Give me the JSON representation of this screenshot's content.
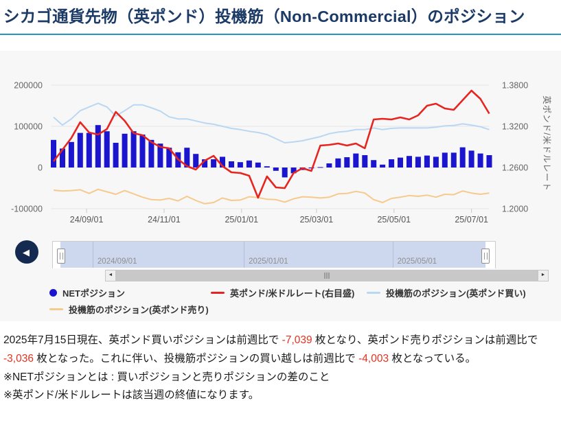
{
  "header": {
    "title": "シカゴ通貨先物（英ポンド）投機筋（Non-Commercial）のポジション"
  },
  "colors": {
    "title": "#1c3a66",
    "accent_rule": "#2296c3",
    "panel_bg": "#f7f7f7",
    "net_bar": "#1b15cd",
    "rate_line": "#e62420",
    "buy_line": "#b9d7f3",
    "sell_line": "#f6c98c",
    "negative_number_text": "#e6301f"
  },
  "controls": {
    "back_glyph": "◀",
    "scroll_left_glyph": "◄",
    "scroll_right_glyph": "►"
  },
  "chart_data": {
    "type": "combo",
    "x_dates": [
      "2024/08/06",
      "2024/08/13",
      "2024/08/20",
      "2024/08/27",
      "2024/09/03",
      "2024/09/10",
      "2024/09/17",
      "2024/09/24",
      "2024/10/01",
      "2024/10/08",
      "2024/10/15",
      "2024/10/22",
      "2024/10/29",
      "2024/11/05",
      "2024/11/12",
      "2024/11/19",
      "2024/11/26",
      "2024/12/03",
      "2024/12/10",
      "2024/12/17",
      "2024/12/24",
      "2024/12/31",
      "2025/01/07",
      "2025/01/14",
      "2025/01/21",
      "2025/01/28",
      "2025/02/04",
      "2025/02/11",
      "2025/02/18",
      "2025/02/25",
      "2025/03/04",
      "2025/03/11",
      "2025/03/18",
      "2025/03/25",
      "2025/04/01",
      "2025/04/08",
      "2025/04/15",
      "2025/04/22",
      "2025/04/29",
      "2025/05/06",
      "2025/05/13",
      "2025/05/20",
      "2025/05/27",
      "2025/06/03",
      "2025/06/10",
      "2025/06/17",
      "2025/06/24",
      "2025/07/01",
      "2025/07/08",
      "2025/07/15"
    ],
    "series": [
      {
        "name": "NETポジション",
        "type": "bar",
        "axis": "left",
        "color": "#1b15cd",
        "values": [
          67000,
          46000,
          62000,
          84000,
          84000,
          103000,
          88000,
          60000,
          82000,
          88000,
          80000,
          67000,
          58000,
          48000,
          37000,
          48000,
          33000,
          20000,
          20000,
          26000,
          15000,
          13000,
          17000,
          12000,
          3000,
          -8000,
          -24000,
          -14000,
          -6000,
          -2000,
          1000,
          10000,
          22000,
          25000,
          34000,
          30000,
          18000,
          7000,
          20000,
          24000,
          28000,
          26000,
          29000,
          26000,
          36000,
          36000,
          49000,
          41000,
          34000,
          30000
        ]
      },
      {
        "name": "英ポンド/米ドルレート(右目盛)",
        "type": "line",
        "axis": "right",
        "color": "#e62420",
        "values": [
          1.269,
          1.286,
          1.303,
          1.326,
          1.311,
          1.308,
          1.316,
          1.341,
          1.328,
          1.31,
          1.307,
          1.297,
          1.29,
          1.288,
          1.272,
          1.262,
          1.257,
          1.27,
          1.277,
          1.262,
          1.253,
          1.252,
          1.248,
          1.216,
          1.247,
          1.231,
          1.23,
          1.252,
          1.259,
          1.255,
          1.292,
          1.293,
          1.295,
          1.292,
          1.295,
          1.288,
          1.33,
          1.331,
          1.33,
          1.333,
          1.33,
          1.336,
          1.35,
          1.353,
          1.346,
          1.344,
          1.358,
          1.372,
          1.36,
          1.3385
        ]
      },
      {
        "name": "投機筋のポジション(英ポンド買い)",
        "type": "line",
        "axis": "left",
        "color": "#b9d7f3",
        "values": [
          122000,
          103000,
          118000,
          138000,
          147000,
          156000,
          147000,
          125000,
          138000,
          152000,
          152000,
          145000,
          137000,
          123000,
          118000,
          118000,
          113000,
          108000,
          105000,
          100000,
          95000,
          92000,
          88000,
          85000,
          80000,
          70000,
          60000,
          62000,
          65000,
          70000,
          75000,
          82000,
          86000,
          88000,
          92000,
          92000,
          96000,
          92000,
          95000,
          96000,
          96000,
          96000,
          96000,
          98000,
          101000,
          102000,
          106000,
          103000,
          99000,
          92000
        ]
      },
      {
        "name": "投機筋のポジション(英ポンド売り)",
        "type": "line",
        "axis": "left",
        "color": "#f6c98c",
        "values": [
          -55000,
          -57000,
          -56000,
          -54000,
          -63000,
          -53000,
          -59000,
          -65000,
          -56000,
          -64000,
          -72000,
          -78000,
          -79000,
          -75000,
          -81000,
          -70000,
          -80000,
          -88000,
          -85000,
          -74000,
          -80000,
          -79000,
          -71000,
          -73000,
          -77000,
          -78000,
          -84000,
          -76000,
          -71000,
          -72000,
          -74000,
          -72000,
          -64000,
          -63000,
          -58000,
          -62000,
          -78000,
          -85000,
          -75000,
          -72000,
          -68000,
          -70000,
          -67000,
          -72000,
          -65000,
          -66000,
          -57000,
          -62000,
          -65000,
          -62000
        ]
      }
    ],
    "left_axis": {
      "ticks": [
        200000,
        100000,
        0,
        -100000
      ],
      "labels": [
        "200000",
        "100000",
        "0",
        "-100000"
      ],
      "range": [
        -130000,
        280000
      ]
    },
    "right_axis": {
      "ticks": [
        1.38,
        1.32,
        1.26,
        1.2
      ],
      "labels": [
        "1.3800",
        "1.3200",
        "1.2600",
        "1.2000"
      ],
      "title": "英ポンド/米ドルレート",
      "range": [
        1.182,
        1.428
      ]
    },
    "x_axis": {
      "ticks": [
        {
          "label": "24/09/01",
          "index": 3.714
        },
        {
          "label": "24/11/01",
          "index": 12.429
        },
        {
          "label": "25/01/01",
          "index": 21.143
        },
        {
          "label": "25/03/01",
          "index": 29.571
        },
        {
          "label": "25/05/01",
          "index": 38.286
        },
        {
          "label": "25/07/01",
          "index": 47.0
        }
      ]
    },
    "grid": "horizontal-only",
    "legend_position": "bottom",
    "navigator": {
      "labels": [
        {
          "text": "2024/09/01",
          "index": 3.714
        },
        {
          "text": "2025/01/01",
          "index": 21.143
        },
        {
          "text": "2025/05/01",
          "index": 38.286
        }
      ]
    }
  },
  "summary": {
    "segments": [
      {
        "text": "2025年7月15日現在、英ポンド買いポジションは前週比で ",
        "red": false
      },
      {
        "text": "-7,039",
        "red": true
      },
      {
        "text": " 枚となり、英ポンド売りポジションは前週比で ",
        "red": false
      },
      {
        "text": "-3,036",
        "red": true
      },
      {
        "text": " 枚となった。これに伴い、投機筋ポジションの買い越しは前週比で ",
        "red": false
      },
      {
        "text": "-4,003",
        "red": true
      },
      {
        "text": " 枚となっている。",
        "red": false
      }
    ]
  },
  "notes": [
    "※NETポジションとは : 買いポジションと売りポジションの差のこと",
    "※英ポンド/米ドルレートは該当週の終値になります。"
  ]
}
